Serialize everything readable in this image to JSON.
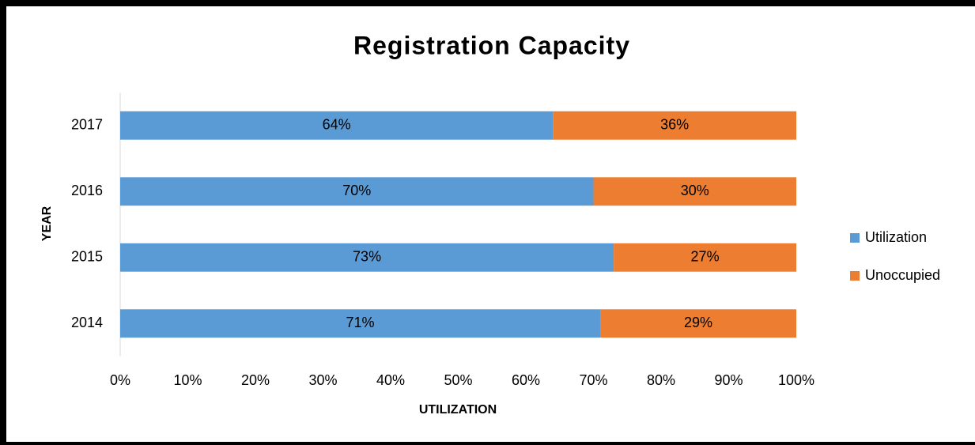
{
  "chart_data": {
    "type": "stacked_barh",
    "title": "Registration Capacity",
    "x_label": "UTILIZATION",
    "y_label": "YEAR",
    "categories": [
      "2014",
      "2015",
      "2016",
      "2017"
    ],
    "series": [
      {
        "name": "Utilization",
        "color": "#5b9bd5",
        "values": [
          71,
          73,
          70,
          64
        ],
        "value_labels": [
          "71%",
          "73%",
          "70%",
          "64%"
        ]
      },
      {
        "name": "Unoccupied",
        "color": "#ed7d31",
        "values": [
          29,
          27,
          30,
          36
        ],
        "value_labels": [
          "29%",
          "27%",
          "30%",
          "36%"
        ]
      }
    ],
    "xlim": [
      0,
      100
    ],
    "xticks": [
      {
        "value": 0,
        "label": "0%"
      },
      {
        "value": 10,
        "label": "10%"
      },
      {
        "value": 20,
        "label": "20%"
      },
      {
        "value": 30,
        "label": "30%"
      },
      {
        "value": 40,
        "label": "40%"
      },
      {
        "value": 50,
        "label": "50%"
      },
      {
        "value": 60,
        "label": "60%"
      },
      {
        "value": 70,
        "label": "70%"
      },
      {
        "value": 80,
        "label": "80%"
      },
      {
        "value": 90,
        "label": "90%"
      },
      {
        "value": 100,
        "label": "100%"
      }
    ],
    "grid": false,
    "legend": "right"
  }
}
